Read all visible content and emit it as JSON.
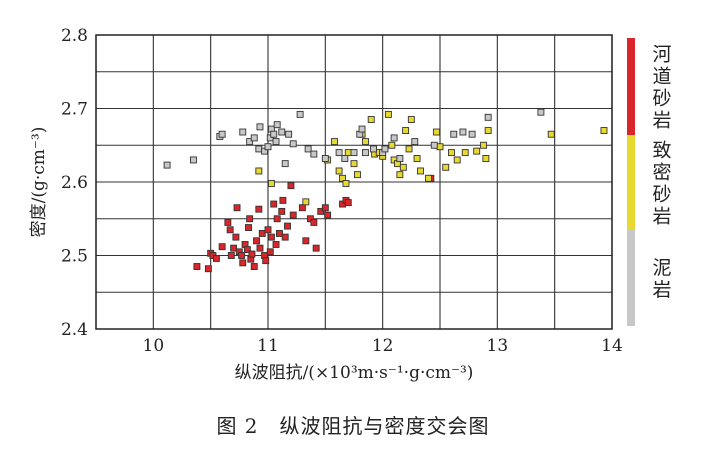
{
  "caption": "图 2　纵波阻抗与密度交会图",
  "chart_data": {
    "type": "scatter",
    "xlabel": "纵波阻抗/(×10³m·s⁻¹·g·cm⁻³)",
    "ylabel": "密度/(g·cm⁻³)",
    "xlim": [
      9.5,
      14
    ],
    "ylim": [
      2.4,
      2.8
    ],
    "xticks": [
      "10",
      "11",
      "12",
      "13",
      "14"
    ],
    "yticks": [
      "2.4",
      "2.5",
      "2.6",
      "2.7",
      "2.8"
    ],
    "grid": true,
    "legend_position": "right",
    "series": [
      {
        "name": "河道砂岩",
        "color": "#d9262b",
        "points": [
          [
            10.38,
            2.485
          ],
          [
            10.48,
            2.482
          ],
          [
            10.5,
            2.503
          ],
          [
            10.52,
            2.5
          ],
          [
            10.55,
            2.496
          ],
          [
            10.6,
            2.512
          ],
          [
            10.65,
            2.545
          ],
          [
            10.67,
            2.535
          ],
          [
            10.68,
            2.5
          ],
          [
            10.7,
            2.51
          ],
          [
            10.72,
            2.525
          ],
          [
            10.73,
            2.565
          ],
          [
            10.75,
            2.505
          ],
          [
            10.77,
            2.5
          ],
          [
            10.78,
            2.49
          ],
          [
            10.8,
            2.515
          ],
          [
            10.82,
            2.508
          ],
          [
            10.83,
            2.538
          ],
          [
            10.84,
            2.55
          ],
          [
            10.85,
            2.495
          ],
          [
            10.86,
            2.502
          ],
          [
            10.88,
            2.485
          ],
          [
            10.9,
            2.52
          ],
          [
            10.92,
            2.563
          ],
          [
            10.93,
            2.51
          ],
          [
            10.95,
            2.53
          ],
          [
            10.97,
            2.5
          ],
          [
            10.98,
            2.493
          ],
          [
            11.0,
            2.535
          ],
          [
            11.02,
            2.505
          ],
          [
            11.03,
            2.525
          ],
          [
            11.05,
            2.57
          ],
          [
            11.07,
            2.515
          ],
          [
            11.08,
            2.55
          ],
          [
            11.1,
            2.53
          ],
          [
            11.12,
            2.56
          ],
          [
            11.13,
            2.575
          ],
          [
            11.15,
            2.525
          ],
          [
            11.17,
            2.54
          ],
          [
            11.2,
            2.595
          ],
          [
            11.22,
            2.555
          ],
          [
            11.3,
            2.565
          ],
          [
            11.33,
            2.52
          ],
          [
            11.37,
            2.55
          ],
          [
            11.4,
            2.545
          ],
          [
            11.42,
            2.51
          ],
          [
            11.46,
            2.56
          ],
          [
            11.5,
            2.565
          ],
          [
            11.52,
            2.555
          ],
          [
            11.65,
            2.57
          ],
          [
            11.68,
            2.575
          ],
          [
            11.7,
            2.572
          ],
          [
            12.42,
            2.605
          ]
        ]
      },
      {
        "name": "致密砂岩",
        "color": "#e7d930",
        "points": [
          [
            10.92,
            2.615
          ],
          [
            11.03,
            2.598
          ],
          [
            11.33,
            2.573
          ],
          [
            11.52,
            2.63
          ],
          [
            11.58,
            2.655
          ],
          [
            11.62,
            2.615
          ],
          [
            11.65,
            2.605
          ],
          [
            11.68,
            2.598
          ],
          [
            11.7,
            2.64
          ],
          [
            11.75,
            2.625
          ],
          [
            11.78,
            2.61
          ],
          [
            11.82,
            2.665
          ],
          [
            11.85,
            2.655
          ],
          [
            11.9,
            2.685
          ],
          [
            11.93,
            2.638
          ],
          [
            11.97,
            2.64
          ],
          [
            12.0,
            2.635
          ],
          [
            12.05,
            2.692
          ],
          [
            12.08,
            2.65
          ],
          [
            12.1,
            2.63
          ],
          [
            12.13,
            2.625
          ],
          [
            12.15,
            2.61
          ],
          [
            12.18,
            2.62
          ],
          [
            12.2,
            2.67
          ],
          [
            12.23,
            2.645
          ],
          [
            12.25,
            2.685
          ],
          [
            12.3,
            2.632
          ],
          [
            12.33,
            2.615
          ],
          [
            12.4,
            2.605
          ],
          [
            12.47,
            2.668
          ],
          [
            12.5,
            2.648
          ],
          [
            12.55,
            2.62
          ],
          [
            12.6,
            2.64
          ],
          [
            12.65,
            2.63
          ],
          [
            12.72,
            2.64
          ],
          [
            12.82,
            2.642
          ],
          [
            12.88,
            2.65
          ],
          [
            12.9,
            2.632
          ],
          [
            12.92,
            2.67
          ],
          [
            13.47,
            2.665
          ],
          [
            13.93,
            2.67
          ]
        ]
      },
      {
        "name": "泥岩",
        "color": "#c8c8c8",
        "points": [
          [
            10.12,
            2.623
          ],
          [
            10.35,
            2.63
          ],
          [
            10.58,
            2.662
          ],
          [
            10.6,
            2.665
          ],
          [
            10.78,
            2.668
          ],
          [
            10.84,
            2.655
          ],
          [
            10.88,
            2.66
          ],
          [
            10.92,
            2.645
          ],
          [
            10.93,
            2.675
          ],
          [
            10.97,
            2.642
          ],
          [
            11.0,
            2.648
          ],
          [
            11.02,
            2.66
          ],
          [
            11.03,
            2.672
          ],
          [
            11.05,
            2.665
          ],
          [
            11.07,
            2.655
          ],
          [
            11.08,
            2.678
          ],
          [
            11.12,
            2.668
          ],
          [
            11.15,
            2.625
          ],
          [
            11.18,
            2.665
          ],
          [
            11.22,
            2.652
          ],
          [
            11.28,
            2.692
          ],
          [
            11.35,
            2.645
          ],
          [
            11.4,
            2.638
          ],
          [
            11.5,
            2.632
          ],
          [
            11.62,
            2.64
          ],
          [
            11.67,
            2.632
          ],
          [
            11.75,
            2.64
          ],
          [
            11.8,
            2.665
          ],
          [
            11.82,
            2.672
          ],
          [
            11.85,
            2.64
          ],
          [
            11.92,
            2.645
          ],
          [
            12.0,
            2.64
          ],
          [
            12.02,
            2.645
          ],
          [
            12.1,
            2.66
          ],
          [
            12.15,
            2.632
          ],
          [
            12.28,
            2.655
          ],
          [
            12.45,
            2.65
          ],
          [
            12.62,
            2.665
          ],
          [
            12.7,
            2.668
          ],
          [
            12.78,
            2.665
          ],
          [
            12.92,
            2.688
          ],
          [
            13.38,
            2.695
          ]
        ]
      }
    ]
  }
}
